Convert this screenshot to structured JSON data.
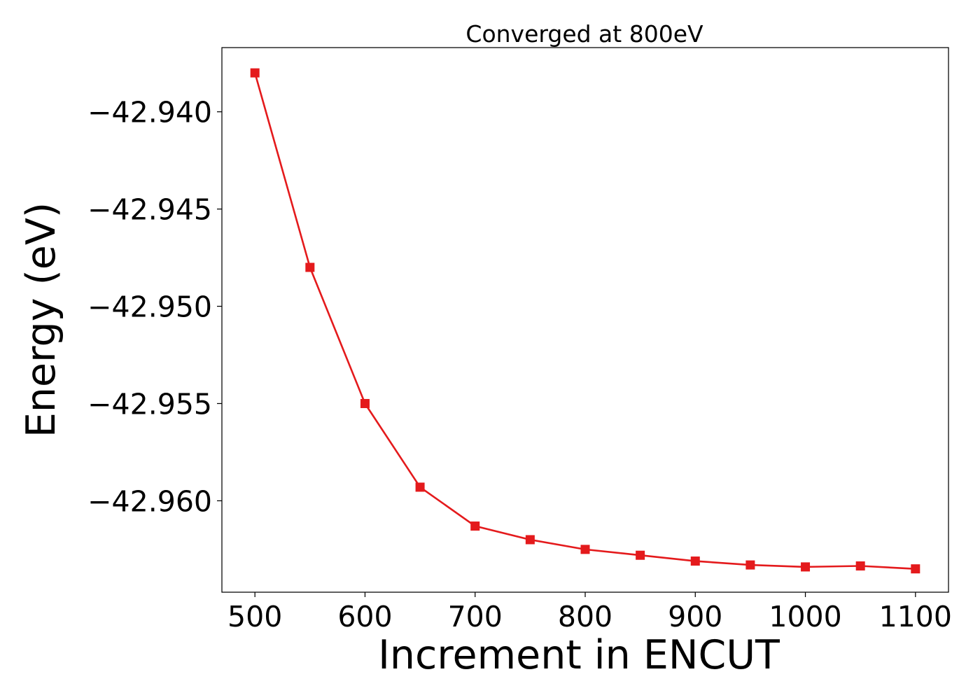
{
  "chart_data": {
    "type": "line",
    "title": "Converged at 800eV",
    "xlabel": "Increment in ENCUT",
    "ylabel": "Energy (eV)",
    "xlim": [
      470,
      1130
    ],
    "ylim": [
      -42.9647,
      -42.9367
    ],
    "xticks": [
      500,
      600,
      700,
      800,
      900,
      1000,
      1100
    ],
    "yticks": [
      -42.94,
      -42.945,
      -42.95,
      -42.955,
      -42.96
    ],
    "ytick_labels": [
      "−42.940",
      "−42.945",
      "−42.950",
      "−42.955",
      "−42.960"
    ],
    "grid": false,
    "marker": "square",
    "series": [
      {
        "color": "#e41a1c",
        "x": [
          500,
          550,
          600,
          650,
          700,
          750,
          800,
          850,
          900,
          950,
          1000,
          1050,
          1100
        ],
        "y": [
          -42.938,
          -42.948,
          -42.955,
          -42.9593,
          -42.9613,
          -42.962,
          -42.9625,
          -42.9628,
          -42.9631,
          -42.9633,
          -42.9634,
          -42.96335,
          -42.9635
        ]
      }
    ]
  }
}
